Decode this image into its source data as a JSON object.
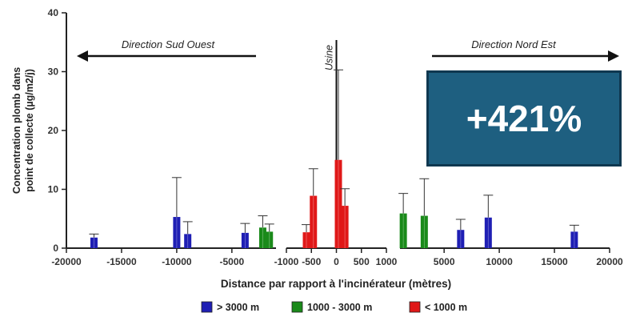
{
  "chart_data": {
    "type": "bar",
    "ylabel": "Concentration plomb dans point de collecte (µg/m2/j)",
    "xlabel": "Distance par rapport à l'incinérateur (mètres)",
    "ylim": [
      0,
      40
    ],
    "y_ticks": [
      "0",
      "10",
      "20",
      "30",
      "40"
    ],
    "grid": false,
    "legend_position": "bottom",
    "colors": {
      "far": "#1f1fb4",
      "mid": "#1a8a1a",
      "near": "#e01818"
    },
    "panels": [
      {
        "xlim": [
          -20000,
          -1000
        ],
        "x_ticks": [
          -20000,
          -15000,
          -10000,
          -5000
        ],
        "tick_labels": [
          "-20000",
          "-15000",
          "-10000",
          "-5000"
        ]
      },
      {
        "xlim": [
          -1000,
          1000
        ],
        "x_ticks": [
          -1000,
          -500,
          0,
          500,
          1000
        ],
        "tick_labels": [
          "-1000",
          "-500",
          "0",
          "500",
          "1000"
        ]
      },
      {
        "xlim": [
          1000,
          20000
        ],
        "x_ticks": [
          5000,
          10000,
          15000,
          20000
        ],
        "tick_labels": [
          "5000",
          "10000",
          "15000",
          "20000"
        ]
      }
    ],
    "series": [
      {
        "name": "> 3000 m",
        "key": "far",
        "points": [
          {
            "x": -17500,
            "y": 1.8,
            "err": 2.4
          },
          {
            "x": -10000,
            "y": 5.3,
            "err": 12.0
          },
          {
            "x": -9000,
            "y": 2.4,
            "err": 4.5
          },
          {
            "x": -3800,
            "y": 2.6,
            "err": 4.2
          },
          {
            "x": 6500,
            "y": 3.1,
            "err": 4.9
          },
          {
            "x": 9000,
            "y": 5.2,
            "err": 9.0
          },
          {
            "x": 16800,
            "y": 2.8,
            "err": 3.9
          }
        ]
      },
      {
        "name": "1000 - 3000 m",
        "key": "mid",
        "points": [
          {
            "x": -2200,
            "y": 3.5,
            "err": 5.5
          },
          {
            "x": -1600,
            "y": 2.8,
            "err": 4.1
          },
          {
            "x": 1300,
            "y": 5.9,
            "err": 9.3
          },
          {
            "x": 3200,
            "y": 5.5,
            "err": 11.8
          }
        ]
      },
      {
        "name": "< 1000 m",
        "key": "near",
        "points": [
          {
            "x": -600,
            "y": 2.7,
            "err": 4.0
          },
          {
            "x": -460,
            "y": 8.9,
            "err": 13.5
          },
          {
            "x": 40,
            "y": 15.0,
            "err": 30.3
          },
          {
            "x": 170,
            "y": 7.2,
            "err": 10.1
          }
        ]
      }
    ],
    "annotations": {
      "left_arrow": "Direction Sud Ouest",
      "right_arrow": "Direction Nord Est",
      "usine": "Usine"
    }
  },
  "badge": {
    "text": "+421%"
  }
}
